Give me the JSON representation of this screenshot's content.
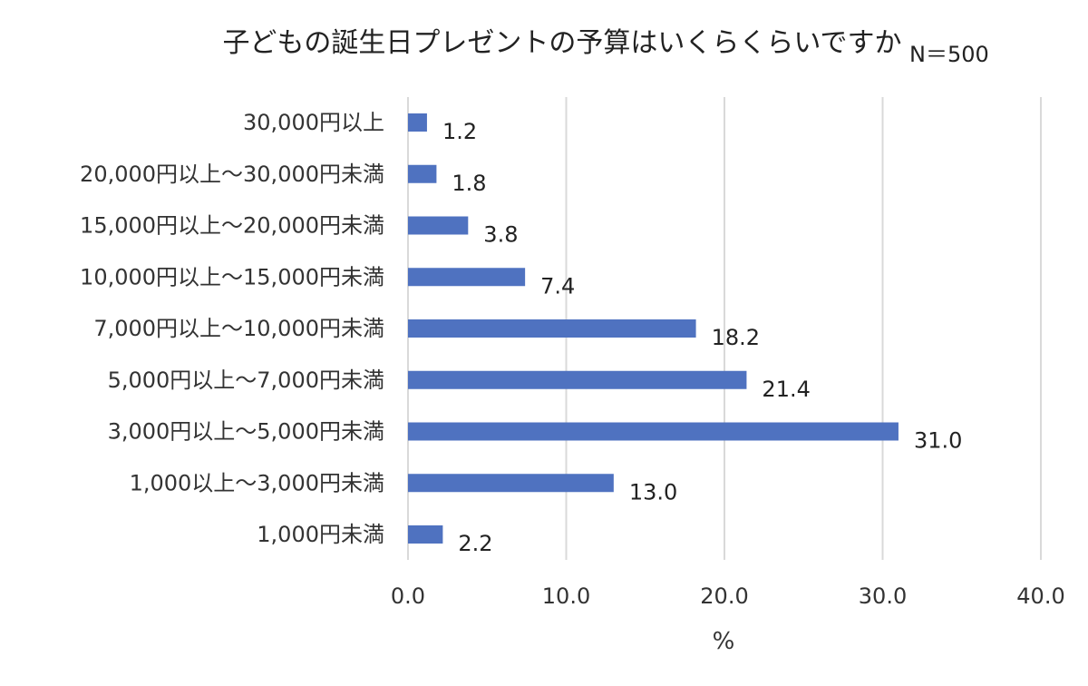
{
  "chart_data": {
    "type": "bar",
    "orientation": "horizontal",
    "title": "子どもの誕生日プレゼントの予算はいくらくらいですか",
    "sample_size": "N＝500",
    "xlabel": "%",
    "ylabel": "",
    "xlim": [
      0,
      40
    ],
    "xticks": [
      "0.0",
      "10.0",
      "20.0",
      "30.0",
      "40.0"
    ],
    "xtick_values": [
      0,
      10,
      20,
      30,
      40
    ],
    "grid": true,
    "bar_color": "#4f72c0",
    "gridline_color": "#d9d9d9",
    "categories": [
      "30,000円以上",
      "20,000円以上～30,000円未満",
      "15,000円以上～20,000円未満",
      "10,000円以上～15,000円未満",
      "7,000円以上～10,000円未満",
      "5,000円以上～7,000円未満",
      "3,000円以上～5,000円未満",
      "1,000以上～3,000円未満",
      "1,000円未満"
    ],
    "values": [
      1.2,
      1.8,
      3.8,
      7.4,
      18.2,
      21.4,
      31.0,
      13.0,
      2.2
    ],
    "value_labels": [
      "1.2",
      "1.8",
      "3.8",
      "7.4",
      "18.2",
      "21.4",
      "31.0",
      "13.0",
      "2.2"
    ]
  }
}
